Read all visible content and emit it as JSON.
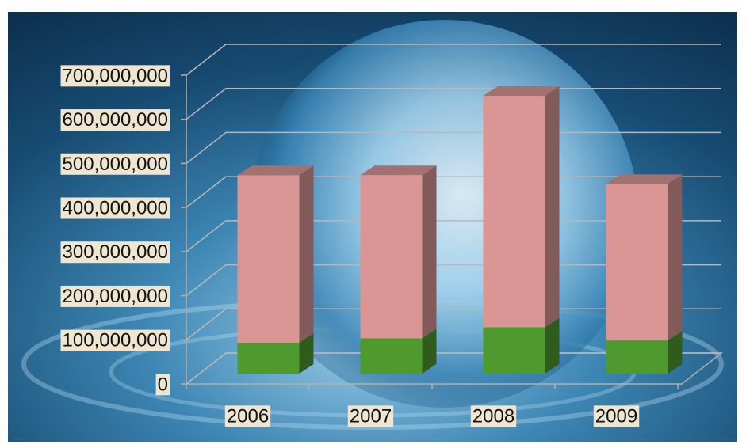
{
  "chart_data": {
    "type": "bar",
    "stacked": true,
    "three_d": true,
    "categories": [
      "2006",
      "2007",
      "2008",
      "2009"
    ],
    "series": [
      {
        "color": "#4f9a2e",
        "values": [
          70000000,
          80000000,
          105000000,
          75000000
        ]
      },
      {
        "color": "#d99694",
        "values": [
          380000000,
          370000000,
          525000000,
          355000000
        ]
      }
    ],
    "ylim": [
      0,
      700000000
    ],
    "yticks": [
      0,
      {
        "value": 100000000,
        "label": "100,000,000"
      },
      {
        "value": 200000000,
        "label": "200,000,000"
      },
      {
        "value": 300000000,
        "label": "300,000,000"
      },
      {
        "value": 400000000,
        "label": "400,000,000"
      },
      {
        "value": 500000000,
        "label": "500,000,000"
      },
      {
        "value": 600000000,
        "label": "600,000,000"
      },
      {
        "value": 700000000,
        "label": "700,000,000"
      }
    ],
    "grid": true
  }
}
